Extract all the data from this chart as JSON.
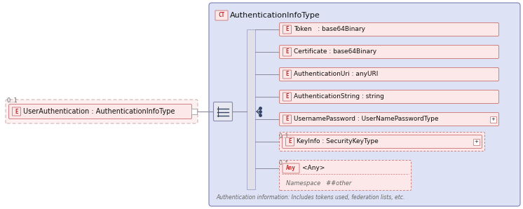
{
  "bg_color": "#ffffff",
  "outer_bg": "#dde3f5",
  "element_fill": "#fce8e8",
  "element_border": "#d08080",
  "element_label_color": "#cc2222",
  "text_color": "#111111",
  "gray_text": "#666666",
  "connector_color": "#888899",
  "panel_border": "#8888bb",
  "seq_bar_fill": "#e0e0e8",
  "seq_bar_border": "#aaaacc",
  "seq_sym_fill": "#e8e8f0",
  "seq_sym_border": "#8888aa",
  "seq_dot_color": "#334466",
  "title_label": "CT",
  "title_text": "AuthenticationInfoType",
  "main_element_text": "UserAuthentication : AuthenticationInfoType",
  "main_label": "E",
  "main_cardinality": "0..1",
  "elements": [
    {
      "label": "E",
      "text": "Token   : base64Binary",
      "cardinality": null,
      "dashed": false,
      "expandable": false,
      "type": "element"
    },
    {
      "label": "E",
      "text": "Certificate : base64Binary",
      "cardinality": null,
      "dashed": false,
      "expandable": false,
      "type": "element"
    },
    {
      "label": "E",
      "text": "AuthenticationUri : anyURI",
      "cardinality": null,
      "dashed": false,
      "expandable": false,
      "type": "element"
    },
    {
      "label": "E",
      "text": "AuthenticationString : string",
      "cardinality": null,
      "dashed": false,
      "expandable": false,
      "type": "element"
    },
    {
      "label": "E",
      "text": "UsernamePassword : UserNamePasswordType",
      "cardinality": null,
      "dashed": false,
      "expandable": true,
      "type": "element"
    },
    {
      "label": "E",
      "text": "KeyInfo : SecurityKeyType",
      "cardinality": "0..1",
      "dashed": true,
      "expandable": true,
      "type": "element"
    },
    {
      "label": "Any",
      "text": "<Any>",
      "cardinality": "0..*",
      "dashed": true,
      "expandable": false,
      "type": "any",
      "namespace": "Namespace   ##other"
    }
  ],
  "footer_text": "Authentication information: Includes tokens used, federation lists, etc."
}
